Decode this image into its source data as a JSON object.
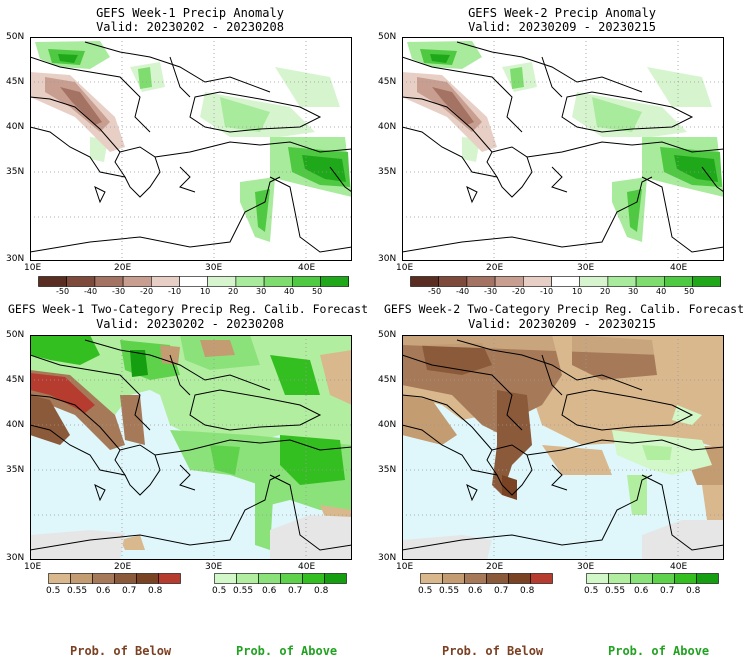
{
  "panels": [
    {
      "id": "tl",
      "title": "GEFS Week-1 Precip Anomaly",
      "valid": "Valid: 20230202 - 20230208",
      "kind": "anomaly"
    },
    {
      "id": "tr",
      "title": "GEFS Week-2 Precip Anomaly",
      "valid": "Valid: 20230209 - 20230215",
      "kind": "anomaly"
    },
    {
      "id": "bl",
      "title": "GEFS Week-1 Two-Category Precip Reg. Calib. Forecast",
      "valid": "Valid: 20230202 - 20230208",
      "kind": "prob"
    },
    {
      "id": "br",
      "title": "GEFS Week-2 Two-Category Precip Reg. Calib. Forecast",
      "valid": "Valid: 20230209 - 20230215",
      "kind": "prob"
    }
  ],
  "axes": {
    "lat_labels": [
      "50N",
      "45N",
      "40N",
      "35N",
      "30N"
    ],
    "lon_labels": [
      "10E",
      "20E",
      "30E",
      "40E"
    ]
  },
  "anomaly_colorbar": {
    "labels": [
      "-50",
      "-40",
      "-30",
      "-20",
      "-10",
      "10",
      "20",
      "30",
      "40",
      "50"
    ],
    "colors": [
      "#5a2d22",
      "#7e4a3c",
      "#a47364",
      "#c89e90",
      "#e8cfc6",
      "#ffffff",
      "#d6f5cf",
      "#a8eb9c",
      "#7fdc6f",
      "#4fc842",
      "#1fa81a"
    ]
  },
  "below_colorbar": {
    "labels": [
      "0.5",
      "0.55",
      "0.6",
      "0.7",
      "0.8"
    ],
    "colors": [
      "#d9b88e",
      "#c49c72",
      "#a67a58",
      "#8b5a3a",
      "#7a4424",
      "#b63c30"
    ]
  },
  "above_colorbar": {
    "labels": [
      "0.5",
      "0.55",
      "0.6",
      "0.7",
      "0.8"
    ],
    "colors": [
      "#d2f7c8",
      "#b2ee9f",
      "#8ce27a",
      "#5fd24b",
      "#34bf21",
      "#159e0f"
    ]
  },
  "bottom_labels": {
    "below": "Prob. of Below",
    "above": "Prob. of Above"
  },
  "colors": {
    "below_text": "#7b3f22",
    "above_text": "#21a321",
    "sea": "#dff7fb",
    "noskill": "#e6e6e6"
  }
}
